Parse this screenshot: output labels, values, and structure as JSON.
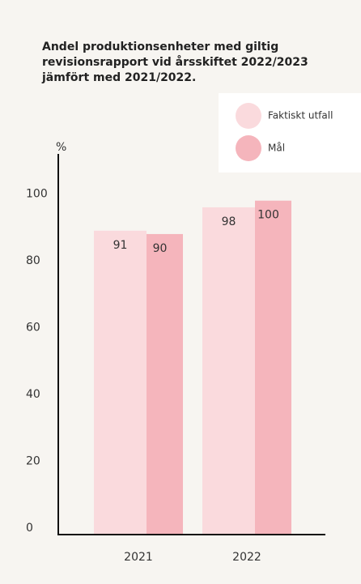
{
  "chart_data": {
    "type": "bar",
    "title_lines": [
      "Andel produktionsenheter med giltig",
      "revisionsrapport vid årsskiftet 2022/2023",
      "jämfört med 2021/2022."
    ],
    "y_axis_label": "%",
    "categories": [
      "2021",
      "2022"
    ],
    "series": [
      {
        "name": "Faktiskt utfall",
        "color": "#fadadd",
        "values": [
          91,
          98
        ]
      },
      {
        "name": "Mål",
        "color": "#f5b5bc",
        "values": [
          90,
          100
        ]
      }
    ],
    "ylim": [
      0,
      114
    ],
    "yticks": [
      0,
      20,
      40,
      60,
      80,
      100
    ],
    "grid": false,
    "legend": "top-right"
  }
}
